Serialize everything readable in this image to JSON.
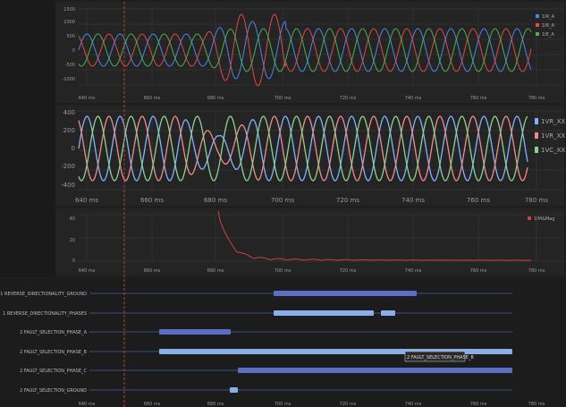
{
  "theme": {
    "background": "#1e1e1e",
    "panel": "#242424",
    "grid": "#3a3a3a",
    "marker": "#c0392b",
    "colors": {
      "blue": "#4a86e8",
      "red": "#e04848",
      "green": "#4caf50",
      "volt_blue": "#7fb3ff",
      "volt_red": "#f08c8c",
      "volt_green": "#8fd18f",
      "mag": "#d04040",
      "bar_dark": "#5a6fc4",
      "bar_light": "#8aaee8",
      "gantt_line": "#4a5ea0"
    }
  },
  "panels": {
    "current": {
      "y_ticks": [
        "1500",
        "1000",
        "500",
        "0",
        "-500",
        "-1000"
      ],
      "x_ticks": [
        "640 ms",
        "660 ms",
        "680 ms",
        "700 ms",
        "720 ms",
        "740 ms",
        "760 ms",
        "780 ms"
      ],
      "legend": [
        "1IR_A",
        "1IR_A",
        "1IE_A"
      ]
    },
    "voltage": {
      "y_ticks": [
        "400",
        "200",
        "0",
        "-200",
        "-400"
      ],
      "x_ticks": [
        "640 ms",
        "660 ms",
        "680 ms",
        "700 ms",
        "720 ms",
        "740 ms",
        "760 ms",
        "780 ms"
      ],
      "legend": [
        "1VR_XX",
        "1VR_XX",
        "1VC_XX"
      ]
    },
    "magnitude": {
      "y_ticks": [
        "40",
        "20",
        "0"
      ],
      "x_ticks": [
        "640 ms",
        "660 ms",
        "680 ms",
        "700 ms",
        "720 ms",
        "740 ms",
        "760 ms",
        "780 ms"
      ],
      "legend": [
        "1IM&Mag"
      ]
    },
    "digital": {
      "rows": [
        "1 REVERSE_DIRECTIONALITY_GROUND",
        "1 REVERSE_DIRECTIONALITY_PHASES",
        "2 FAULT_SELECTION_PHASE_A",
        "2 FAULT_SELECTION_PHASE_B",
        "2 FAULT_SELECTION_PHASE_C",
        "2 FAULT_SELECTION_GROUND"
      ],
      "x_ticks": [
        "640 ms",
        "660 ms",
        "680 ms",
        "700 ms",
        "720 ms",
        "740 ms",
        "760 ms",
        "780 ms"
      ],
      "tooltip": "2 FAULT_SELECTION_PHASE_B"
    }
  }
}
